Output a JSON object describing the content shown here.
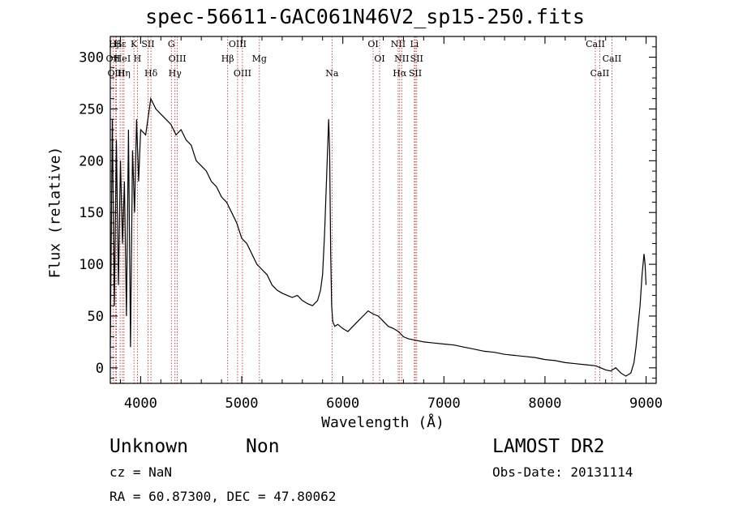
{
  "chart_data": {
    "type": "line",
    "title": "spec-56611-GAC061N46V2_sp15-250.fits",
    "xlabel": "Wavelength (Å)",
    "ylabel": "Flux (relative)",
    "xlim": [
      3700,
      9100
    ],
    "ylim": [
      -15,
      320
    ],
    "xticks": [
      4000,
      5000,
      6000,
      7000,
      8000,
      9000
    ],
    "yticks": [
      0,
      50,
      100,
      150,
      200,
      250,
      300
    ],
    "grid": false,
    "series": [
      {
        "x": [
          3700,
          3720,
          3740,
          3760,
          3780,
          3800,
          3820,
          3840,
          3860,
          3880,
          3900,
          3920,
          3940,
          3960,
          3980,
          4000,
          4050,
          4100,
          4150,
          4200,
          4250,
          4300,
          4350,
          4400,
          4450,
          4500,
          4550,
          4600,
          4650,
          4700,
          4750,
          4800,
          4850,
          4900,
          4950,
          5000,
          5050,
          5100,
          5150,
          5200,
          5250,
          5300,
          5350,
          5400,
          5450,
          5500,
          5550,
          5600,
          5650,
          5700,
          5750,
          5780,
          5800,
          5820,
          5840,
          5860,
          5870,
          5880,
          5890,
          5900,
          5920,
          5950,
          6000,
          6050,
          6100,
          6150,
          6200,
          6250,
          6300,
          6350,
          6400,
          6450,
          6500,
          6550,
          6600,
          6650,
          6700,
          6750,
          6800,
          6900,
          7000,
          7100,
          7200,
          7300,
          7400,
          7500,
          7600,
          7700,
          7800,
          7900,
          8000,
          8100,
          8200,
          8300,
          8400,
          8500,
          8550,
          8600,
          8650,
          8700,
          8750,
          8800,
          8850,
          8880,
          8900,
          8920,
          8940,
          8960,
          8980,
          8990,
          9000
        ],
        "y": [
          20,
          240,
          60,
          220,
          80,
          200,
          120,
          180,
          50,
          230,
          20,
          210,
          150,
          240,
          180,
          230,
          225,
          260,
          250,
          245,
          240,
          235,
          225,
          230,
          220,
          215,
          200,
          195,
          190,
          180,
          175,
          165,
          160,
          150,
          140,
          125,
          120,
          110,
          100,
          95,
          90,
          80,
          75,
          72,
          70,
          68,
          70,
          65,
          62,
          60,
          65,
          75,
          90,
          130,
          185,
          240,
          210,
          110,
          60,
          45,
          40,
          42,
          38,
          35,
          40,
          45,
          50,
          55,
          52,
          50,
          45,
          40,
          38,
          35,
          30,
          28,
          27,
          26,
          25,
          24,
          23,
          22,
          20,
          18,
          16,
          15,
          13,
          12,
          11,
          10,
          8,
          7,
          5,
          4,
          3,
          2,
          0,
          -2,
          -3,
          0,
          -5,
          -8,
          -5,
          5,
          20,
          40,
          60,
          90,
          110,
          100,
          80
        ]
      }
    ],
    "lines": [
      {
        "label": "Hβ",
        "x": 3750
      },
      {
        "label": "OII",
        "x": 3727
      },
      {
        "label": "OIII",
        "x": 3760
      },
      {
        "label": "Hε",
        "x": 3797
      },
      {
        "label": "HeI",
        "x": 3820
      },
      {
        "label": "Hη",
        "x": 3835
      },
      {
        "label": "K",
        "x": 3934
      },
      {
        "label": "H",
        "x": 3968
      },
      {
        "label": "Hδ",
        "x": 4102
      },
      {
        "label": "SII",
        "x": 4073
      },
      {
        "label": "OIII",
        "x": 4363
      },
      {
        "label": "Hγ",
        "x": 4340
      },
      {
        "label": "G",
        "x": 4304
      },
      {
        "label": "Hβ",
        "x": 4861
      },
      {
        "label": "OIII",
        "x": 5007
      },
      {
        "label": "OIII",
        "x": 4959
      },
      {
        "label": "Mg",
        "x": 5175
      },
      {
        "label": "Na",
        "x": 5893
      },
      {
        "label": "OI",
        "x": 6300
      },
      {
        "label": "OI",
        "x": 6364
      },
      {
        "label": "Hα",
        "x": 6563
      },
      {
        "label": "NII",
        "x": 6548
      },
      {
        "label": "NII",
        "x": 6583
      },
      {
        "label": "SII",
        "x": 6717
      },
      {
        "label": "Li",
        "x": 6708
      },
      {
        "label": "SII",
        "x": 6731
      },
      {
        "label": "CaII",
        "x": 8542
      },
      {
        "label": "CaII",
        "x": 8498
      },
      {
        "label": "CaII",
        "x": 8662
      }
    ]
  },
  "info": {
    "class": "Unknown",
    "subclass": "Non",
    "survey": "LAMOST DR2",
    "cz": "cz = NaN",
    "obsdate": "Obs-Date: 20131114",
    "radec": "RA =  60.87300, DEC =  47.80062"
  }
}
